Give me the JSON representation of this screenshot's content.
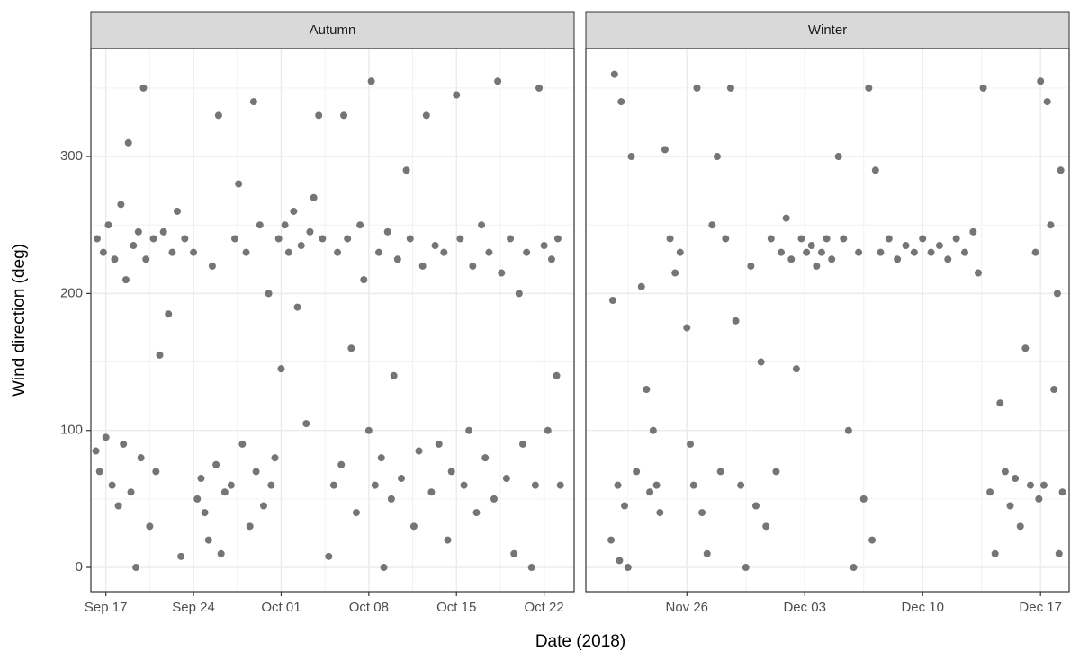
{
  "chart_data": {
    "type": "scatter",
    "xlabel": "Date (2018)",
    "ylabel": "Wind direction (deg)",
    "color": "#757575",
    "grid": true,
    "ylim": [
      -17.7,
      378.8
    ],
    "yticks": [
      0,
      100,
      200,
      300
    ],
    "y_minor_ticks": [
      50,
      150,
      250,
      350
    ],
    "facets": [
      {
        "title": "Autumn",
        "xlim": [
          258.8,
          297.4
        ],
        "xticks": [
          {
            "value": 260,
            "label": "Sep 17"
          },
          {
            "value": 267,
            "label": "Sep 24"
          },
          {
            "value": 274,
            "label": "Oct 01"
          },
          {
            "value": 281,
            "label": "Oct 08"
          },
          {
            "value": 288,
            "label": "Oct 15"
          },
          {
            "value": 295,
            "label": "Oct 22"
          }
        ],
        "x_minor_ticks": [
          263.5,
          270.5,
          277.5,
          284.5,
          291.5
        ],
        "x": [
          259.2,
          259.3,
          259.5,
          259.8,
          260.0,
          260.2,
          260.5,
          260.7,
          261.0,
          261.2,
          261.4,
          261.6,
          261.8,
          262.0,
          262.2,
          262.4,
          262.6,
          262.8,
          263.0,
          263.2,
          263.5,
          263.8,
          264.0,
          264.3,
          264.6,
          265.0,
          265.3,
          265.7,
          266.0,
          266.3,
          267.0,
          267.3,
          267.6,
          267.9,
          268.2,
          268.5,
          268.8,
          269.0,
          269.2,
          269.5,
          270.0,
          270.3,
          270.6,
          270.9,
          271.2,
          271.5,
          271.8,
          272.0,
          272.3,
          272.6,
          273.0,
          273.2,
          273.5,
          273.8,
          274.0,
          274.3,
          274.6,
          275.0,
          275.3,
          275.6,
          276.0,
          276.3,
          276.6,
          277.0,
          277.3,
          277.8,
          278.2,
          278.5,
          278.8,
          279.0,
          279.3,
          279.6,
          280.0,
          280.3,
          280.6,
          281.0,
          281.2,
          281.5,
          281.8,
          282.0,
          282.2,
          282.5,
          282.8,
          283.0,
          283.3,
          283.6,
          284.0,
          284.3,
          284.6,
          285.0,
          285.3,
          285.6,
          286.0,
          286.3,
          286.6,
          287.0,
          287.3,
          287.6,
          288.0,
          288.3,
          288.6,
          289.0,
          289.3,
          289.6,
          290.0,
          290.3,
          290.6,
          291.0,
          291.3,
          291.6,
          292.0,
          292.3,
          292.6,
          293.0,
          293.3,
          293.6,
          294.0,
          294.3,
          294.6,
          295.0,
          295.3,
          295.6,
          296.0,
          296.3,
          296.1
        ],
        "y": [
          85,
          240,
          70,
          230,
          95,
          250,
          60,
          225,
          45,
          265,
          90,
          210,
          310,
          55,
          235,
          0,
          245,
          80,
          350,
          225,
          30,
          240,
          70,
          155,
          245,
          185,
          230,
          260,
          8,
          240,
          230,
          50,
          65,
          40,
          20,
          220,
          75,
          330,
          10,
          55,
          60,
          240,
          280,
          90,
          230,
          30,
          340,
          70,
          250,
          45,
          200,
          60,
          80,
          240,
          145,
          250,
          230,
          260,
          190,
          235,
          105,
          245,
          270,
          330,
          240,
          8,
          60,
          230,
          75,
          330,
          240,
          160,
          40,
          250,
          210,
          100,
          355,
          60,
          230,
          80,
          0,
          245,
          50,
          140,
          225,
          65,
          290,
          240,
          30,
          85,
          220,
          330,
          55,
          235,
          90,
          230,
          20,
          70,
          345,
          240,
          60,
          100,
          220,
          40,
          250,
          80,
          230,
          50,
          355,
          215,
          65,
          240,
          10,
          200,
          90,
          230,
          0,
          60,
          350,
          235,
          100,
          225,
          140,
          60,
          240
        ]
      },
      {
        "title": "Winter",
        "xlim": [
          324.0,
          352.7
        ],
        "xticks": [
          {
            "value": 330,
            "label": "Nov 26"
          },
          {
            "value": 337,
            "label": "Dec 03"
          },
          {
            "value": 344,
            "label": "Dec 10"
          },
          {
            "value": 351,
            "label": "Dec 17"
          }
        ],
        "x_minor_ticks": [
          326.5,
          333.5,
          340.5,
          347.5
        ],
        "x": [
          325.5,
          325.6,
          325.7,
          325.9,
          326.0,
          326.1,
          326.3,
          326.5,
          326.7,
          327.0,
          327.3,
          327.6,
          327.8,
          328.0,
          328.2,
          328.4,
          328.7,
          329.0,
          329.3,
          329.6,
          330.0,
          330.2,
          330.4,
          330.6,
          330.9,
          331.2,
          331.5,
          331.8,
          332.0,
          332.3,
          332.6,
          332.9,
          333.2,
          333.5,
          333.8,
          334.1,
          334.4,
          334.7,
          335.0,
          335.3,
          335.6,
          335.9,
          336.2,
          336.5,
          336.8,
          337.1,
          337.4,
          337.7,
          338.0,
          338.3,
          338.6,
          339.0,
          339.3,
          339.6,
          339.9,
          340.2,
          340.5,
          340.8,
          341.0,
          341.2,
          341.5,
          342.0,
          342.5,
          343.0,
          343.5,
          344.0,
          344.5,
          345.0,
          345.5,
          346.0,
          346.5,
          347.0,
          347.3,
          347.6,
          348.0,
          348.3,
          348.6,
          348.9,
          349.2,
          349.5,
          349.8,
          350.1,
          350.4,
          350.7,
          350.9,
          351.0,
          351.2,
          351.4,
          351.6,
          351.8,
          352.0,
          352.2,
          352.3,
          352.1
        ],
        "y": [
          20,
          195,
          360,
          60,
          5,
          340,
          45,
          0,
          300,
          70,
          205,
          130,
          55,
          100,
          60,
          40,
          305,
          240,
          215,
          230,
          175,
          90,
          60,
          350,
          40,
          10,
          250,
          300,
          70,
          240,
          350,
          180,
          60,
          0,
          220,
          45,
          150,
          30,
          240,
          70,
          230,
          255,
          225,
          145,
          240,
          230,
          235,
          220,
          230,
          240,
          225,
          300,
          240,
          100,
          0,
          230,
          50,
          350,
          20,
          290,
          230,
          240,
          225,
          235,
          230,
          240,
          230,
          235,
          225,
          240,
          230,
          245,
          215,
          350,
          55,
          10,
          120,
          70,
          45,
          65,
          30,
          160,
          60,
          230,
          50,
          355,
          60,
          340,
          250,
          130,
          200,
          290,
          55,
          10
        ]
      }
    ]
  }
}
